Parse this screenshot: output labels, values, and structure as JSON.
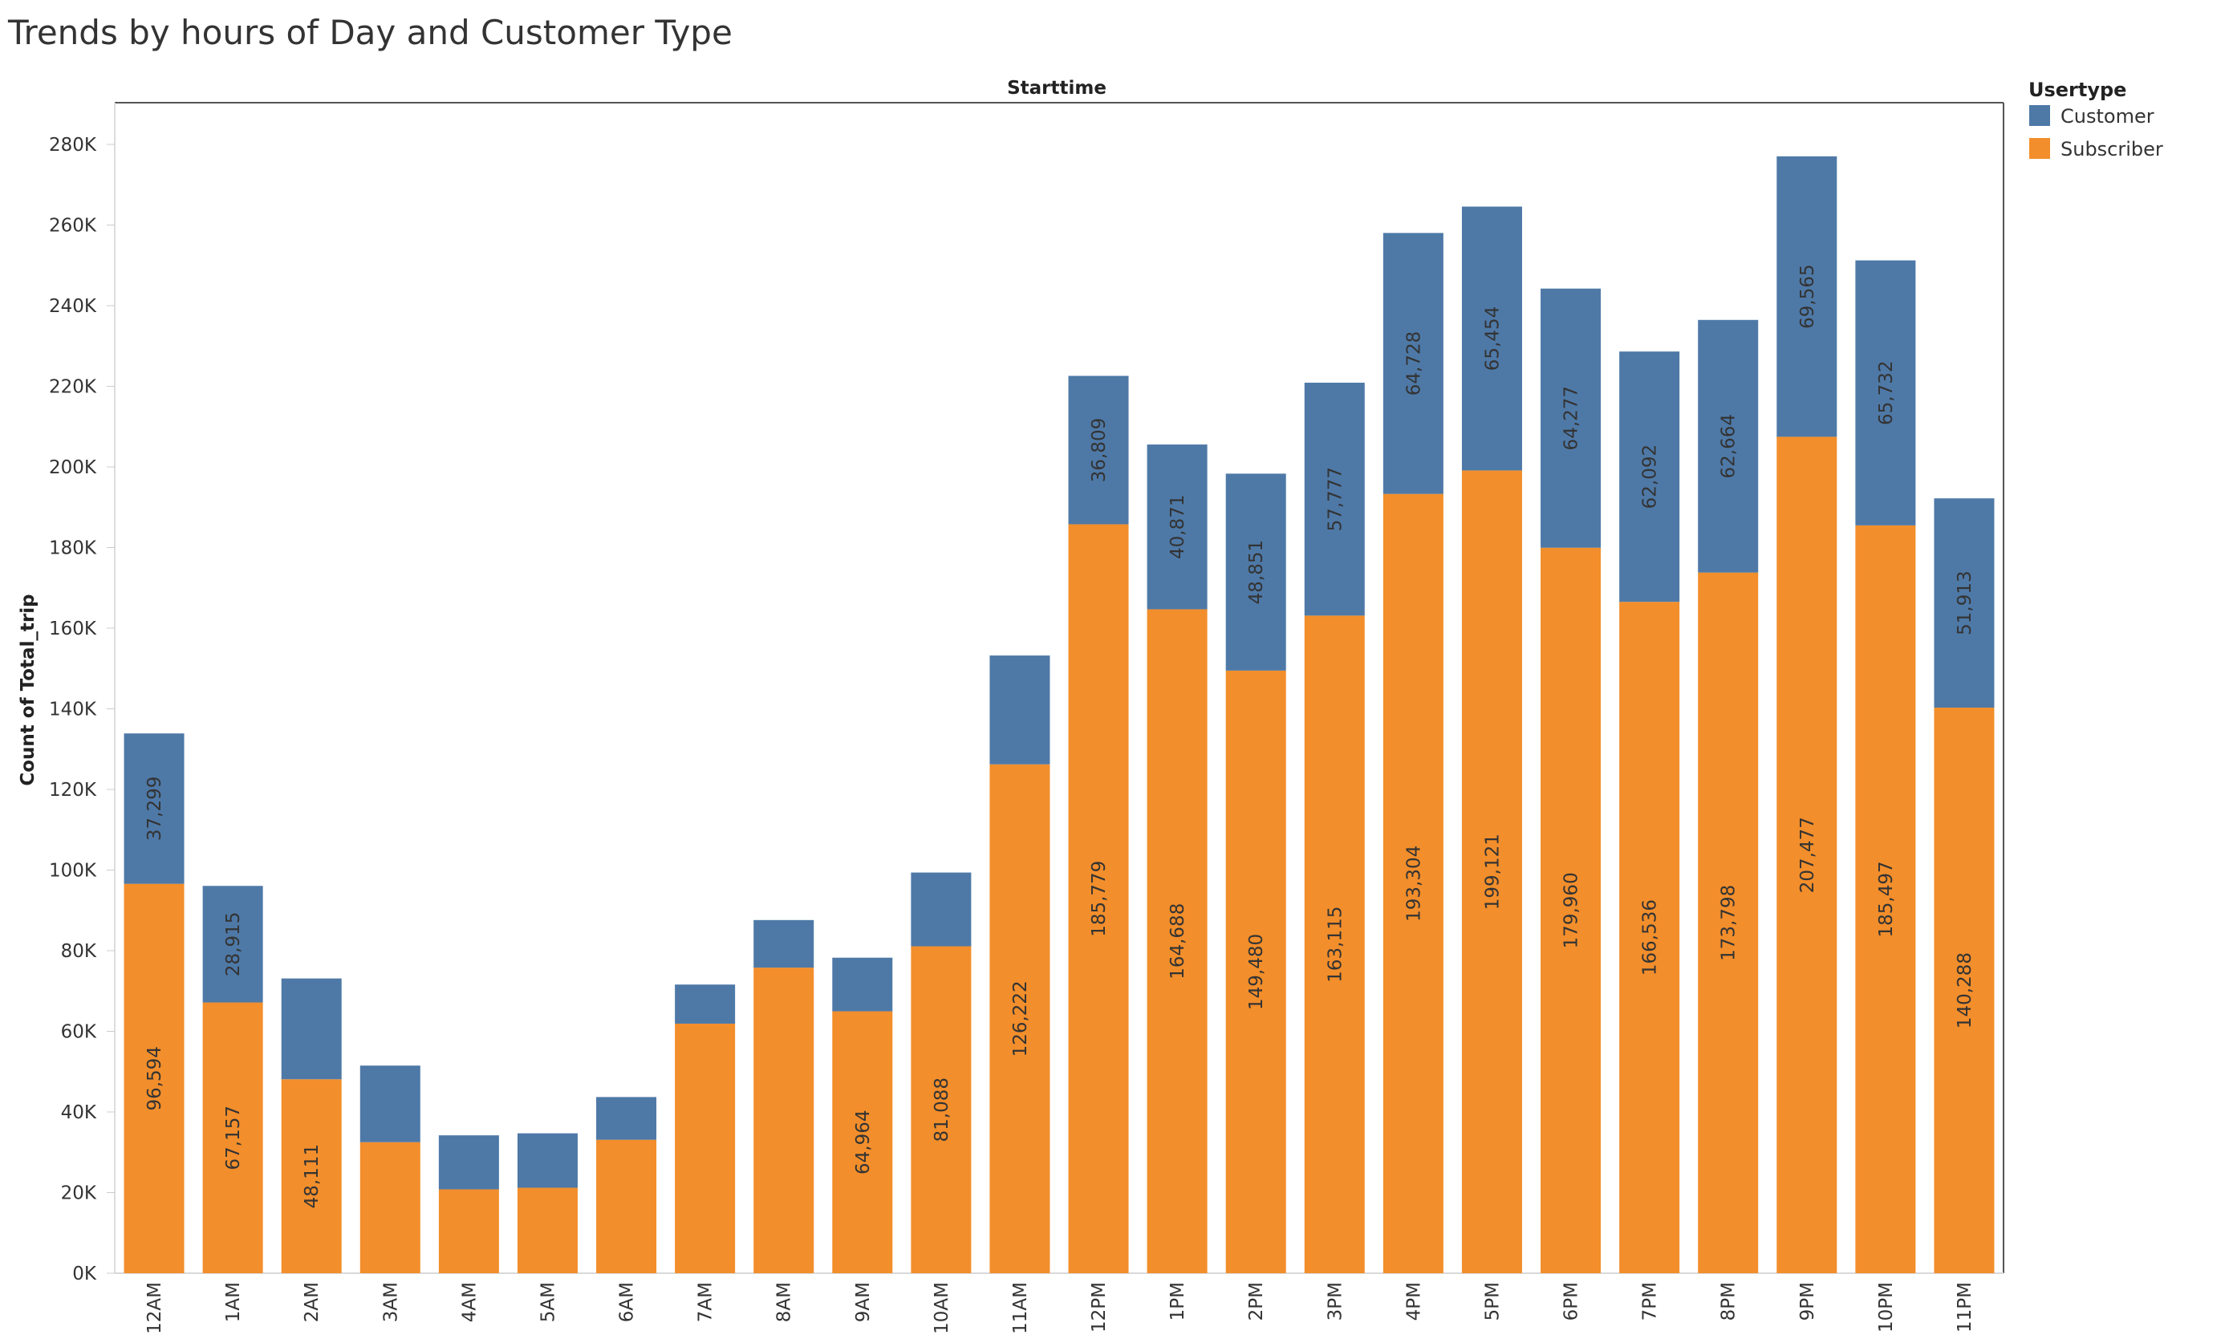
{
  "chart_data": {
    "type": "bar",
    "stacked": true,
    "title": "Trends by hours of Day and Customer Type",
    "column_header": "Starttime",
    "ylabel": "Count of Total_trip",
    "xlabel": "",
    "ylim": [
      0,
      280000
    ],
    "yticks": [
      "0K",
      "20K",
      "40K",
      "60K",
      "80K",
      "100K",
      "120K",
      "140K",
      "160K",
      "180K",
      "200K",
      "220K",
      "240K",
      "260K",
      "280K"
    ],
    "grid": false,
    "legend": {
      "title": "Usertype",
      "position": "top-right",
      "items": [
        "Customer",
        "Subscriber"
      ]
    },
    "categories": [
      "12AM",
      "1AM",
      "2AM",
      "3AM",
      "4AM",
      "5AM",
      "6AM",
      "7AM",
      "8AM",
      "9AM",
      "10AM",
      "11AM",
      "12PM",
      "1PM",
      "2PM",
      "3PM",
      "4PM",
      "5PM",
      "6PM",
      "7PM",
      "8PM",
      "9PM",
      "10PM",
      "11PM"
    ],
    "series": [
      {
        "name": "Subscriber",
        "color": "#f28e2b",
        "values": [
          96594,
          67157,
          48111,
          32500,
          20800,
          21200,
          33100,
          61900,
          75800,
          64964,
          81088,
          126222,
          185779,
          164688,
          149480,
          163115,
          193304,
          199121,
          179960,
          166536,
          173798,
          207477,
          185497,
          140288
        ],
        "labels": [
          "96,594",
          "67,157",
          "48,111",
          "",
          "",
          "",
          "",
          "",
          "",
          "64,964",
          "81,088",
          "126,222",
          "185,779",
          "164,688",
          "149,480",
          "163,115",
          "193,304",
          "199,121",
          "179,960",
          "166,536",
          "173,798",
          "207,477",
          "185,497",
          "140,288"
        ]
      },
      {
        "name": "Customer",
        "color": "#4e79a7",
        "values": [
          37299,
          28915,
          25000,
          19000,
          13400,
          13500,
          10600,
          9700,
          11800,
          13300,
          18300,
          27000,
          36809,
          40871,
          48851,
          57777,
          64728,
          65454,
          64277,
          62092,
          62664,
          69565,
          65732,
          51913
        ],
        "labels": [
          "37,299",
          "28,915",
          "",
          "",
          "",
          "",
          "",
          "",
          "",
          "",
          "",
          "",
          "36,809",
          "40,871",
          "48,851",
          "57,777",
          "64,728",
          "65,454",
          "64,277",
          "62,092",
          "62,664",
          "69,565",
          "65,732",
          "51,913"
        ]
      }
    ]
  }
}
